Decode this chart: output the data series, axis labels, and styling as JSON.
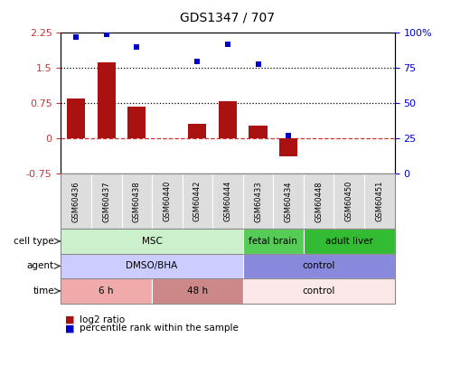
{
  "title": "GDS1347 / 707",
  "samples": [
    "GSM60436",
    "GSM60437",
    "GSM60438",
    "GSM60440",
    "GSM60442",
    "GSM60444",
    "GSM60433",
    "GSM60434",
    "GSM60448",
    "GSM60450",
    "GSM60451"
  ],
  "log2_ratio": [
    0.85,
    1.63,
    0.68,
    0.0,
    0.32,
    0.8,
    0.27,
    -0.38,
    0.0,
    0.0,
    0.0
  ],
  "percentile_rank": [
    97,
    99,
    90,
    null,
    80,
    92,
    78,
    27,
    null,
    null,
    null
  ],
  "ylim_left": [
    -0.75,
    2.25
  ],
  "ylim_right": [
    0,
    100
  ],
  "yticks_left": [
    -0.75,
    0,
    0.75,
    1.5,
    2.25
  ],
  "yticks_right": [
    0,
    25,
    50,
    75,
    100
  ],
  "ytick_labels_left": [
    "-0.75",
    "0",
    "0.75",
    "1.5",
    "2.25"
  ],
  "ytick_labels_right": [
    "0",
    "25",
    "50",
    "75",
    "100%"
  ],
  "hlines": [
    1.5,
    0.75
  ],
  "bar_color": "#aa1111",
  "dot_color": "#0000cc",
  "zero_line_color": "#cc3333",
  "cell_type_groups": [
    {
      "label": "MSC",
      "start": 0,
      "end": 6,
      "color": "#ccf0cc"
    },
    {
      "label": "fetal brain",
      "start": 6,
      "end": 8,
      "color": "#55cc55"
    },
    {
      "label": "adult liver",
      "start": 8,
      "end": 11,
      "color": "#33bb33"
    }
  ],
  "agent_groups": [
    {
      "label": "DMSO/BHA",
      "start": 0,
      "end": 6,
      "color": "#ccccff"
    },
    {
      "label": "control",
      "start": 6,
      "end": 11,
      "color": "#8888dd"
    }
  ],
  "time_groups": [
    {
      "label": "6 h",
      "start": 0,
      "end": 3,
      "color": "#f0aaaa"
    },
    {
      "label": "48 h",
      "start": 3,
      "end": 6,
      "color": "#cc8888"
    },
    {
      "label": "control",
      "start": 6,
      "end": 11,
      "color": "#fce8e8"
    }
  ],
  "row_labels": [
    "cell type",
    "agent",
    "time"
  ],
  "legend_items": [
    {
      "label": "log2 ratio",
      "color": "#aa1111"
    },
    {
      "label": "percentile rank within the sample",
      "color": "#0000cc"
    }
  ],
  "tick_bg_color": "#dddddd",
  "border_color": "#888888"
}
